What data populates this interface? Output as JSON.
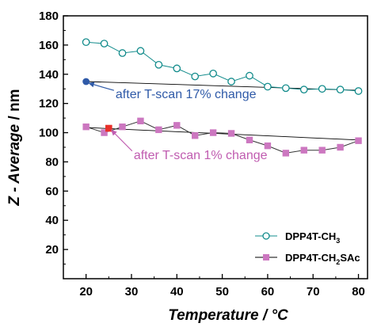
{
  "chart_data": {
    "type": "scatter",
    "xlabel": "Temperature / °C",
    "ylabel_parts": {
      "italic": "Z - Average",
      "plain": " / nm"
    },
    "xlim": [
      15,
      82
    ],
    "ylim": [
      0,
      180
    ],
    "x_ticks": [
      20,
      30,
      40,
      50,
      60,
      70,
      80
    ],
    "y_ticks": [
      20,
      40,
      60,
      80,
      100,
      120,
      140,
      160,
      180
    ],
    "legend_position": "bottom-right",
    "series": [
      {
        "name_parts": {
          "base": "DPP4T-CH",
          "sub": "3",
          "rest": ""
        },
        "marker": "open-circle",
        "color": "#138c8c",
        "x": [
          20,
          24,
          28,
          32,
          36,
          40,
          44,
          48,
          52,
          56,
          60,
          64,
          68,
          72,
          76,
          80
        ],
        "y": [
          162,
          161,
          154.5,
          156,
          146.5,
          144,
          138.5,
          140.5,
          135,
          139,
          131.5,
          130.5,
          129.5,
          130,
          129.5,
          128.5
        ]
      },
      {
        "name_parts": {
          "base": "DPP4T-CH",
          "sub": "2",
          "rest": "SAc"
        },
        "marker": "filled-square",
        "color": "#cc77c0",
        "x": [
          20,
          24,
          28,
          32,
          36,
          40,
          44,
          48,
          52,
          56,
          60,
          64,
          68,
          72,
          76,
          80
        ],
        "y": [
          104,
          100,
          104,
          108,
          102,
          105,
          98,
          100,
          99.5,
          95,
          91,
          86,
          88,
          88,
          90,
          94.5
        ]
      }
    ],
    "after_points": [
      {
        "x": 20,
        "y": 135,
        "color": "#2f5aa8",
        "marker": "filled-circle"
      },
      {
        "x": 25,
        "y": 103,
        "color": "#e8302a",
        "marker": "filled-square"
      }
    ],
    "trend_lines": [
      {
        "x1": 20,
        "y1": 135,
        "x2": 80,
        "y2": 129
      },
      {
        "x1": 20,
        "y1": 103.5,
        "x2": 80,
        "y2": 95
      }
    ],
    "annotations": [
      {
        "text": "after T-scan 17% change",
        "color": "#2f5aa8",
        "x": 26.5,
        "y": 123.5,
        "arrow_to": {
          "x": 20.5,
          "y": 134
        }
      },
      {
        "text": "after T-scan 1% change",
        "color": "#c05cb0",
        "x": 30.5,
        "y": 82,
        "arrow_to": {
          "x": 25.5,
          "y": 102
        }
      }
    ]
  }
}
